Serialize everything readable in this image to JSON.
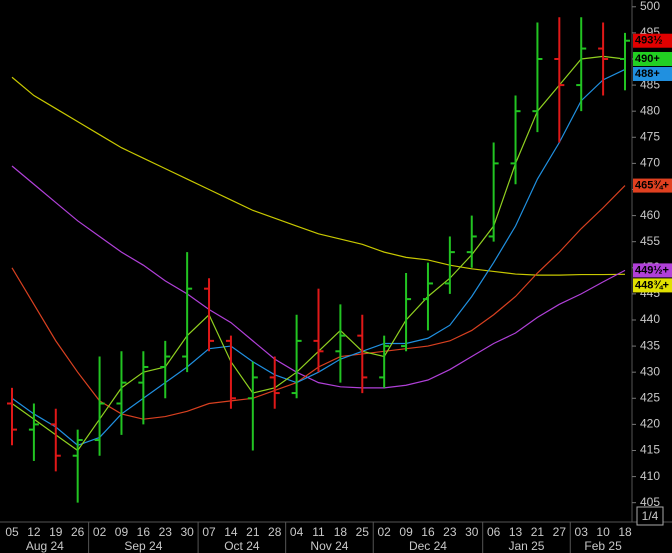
{
  "chart_data": {
    "type": "ohlc",
    "categories": [
      "05",
      "12",
      "19",
      "26",
      "02",
      "09",
      "16",
      "23",
      "30",
      "07",
      "14",
      "21",
      "28",
      "04",
      "11",
      "18",
      "25",
      "02",
      "09",
      "16",
      "23",
      "30",
      "06",
      "13",
      "21",
      "27",
      "03",
      "10",
      "18"
    ],
    "months": [
      "Aug 24",
      "Sep 24",
      "Oct 24",
      "Nov 24",
      "Dec 24",
      "Jan 25",
      "Feb 25"
    ],
    "ylim": [
      401.3,
      501.3
    ],
    "yticks": [
      405,
      410,
      415,
      420,
      425,
      430,
      435,
      440,
      445,
      450,
      455,
      460,
      465,
      470,
      475,
      480,
      485,
      490,
      495,
      500
    ],
    "grid": false,
    "up_color": "#22c422",
    "down_color": "#e01818",
    "ohlc": {
      "open": [
        424,
        419,
        420,
        414,
        417,
        424,
        428,
        431,
        433,
        446,
        436,
        425,
        429,
        426,
        436,
        434,
        437,
        429,
        435,
        444,
        447,
        453,
        456,
        470,
        480,
        490,
        485,
        492,
        490
      ],
      "high": [
        427,
        424,
        423,
        419,
        433,
        434,
        434,
        436,
        453,
        448,
        437,
        432,
        433,
        441,
        446,
        443,
        441,
        437,
        449,
        451,
        456,
        460,
        474,
        483,
        497,
        498,
        498,
        497,
        495
      ],
      "low": [
        416,
        413,
        411,
        405,
        414,
        418,
        420,
        425,
        430,
        434,
        423,
        415,
        423,
        425,
        430,
        428,
        426,
        427,
        434,
        438,
        445,
        450,
        455,
        466,
        476,
        474,
        480,
        483,
        484
      ],
      "close": [
        419,
        420,
        414,
        417,
        424,
        428,
        431,
        433,
        446,
        436,
        425,
        429,
        426,
        436,
        434,
        437,
        429,
        435,
        444,
        447,
        453,
        456,
        470,
        480,
        490,
        485,
        492,
        490,
        493.5
      ]
    },
    "series": [
      {
        "color": "#c8c800",
        "values": [
          486.5,
          483,
          480.5,
          478,
          475.5,
          473,
          471,
          469,
          467,
          465,
          463,
          461,
          459.5,
          458,
          456.5,
          455.5,
          454.5,
          453,
          452,
          451.5,
          450.5,
          449.8,
          449.3,
          448.8,
          448.6,
          448.6,
          448.7,
          448.7,
          448.75
        ]
      },
      {
        "color": "#b040d8",
        "values": [
          469.5,
          466,
          462.5,
          459,
          456,
          453,
          450.5,
          447.5,
          445,
          442,
          439.5,
          436,
          432.5,
          430,
          428,
          427.2,
          427,
          427,
          427.5,
          428.5,
          430.5,
          433,
          435.5,
          437.5,
          440.5,
          443,
          445,
          447.3,
          449.5
        ]
      },
      {
        "color": "#d84020",
        "values": [
          450,
          443,
          436,
          430,
          424.5,
          422,
          421,
          421.5,
          422.5,
          424,
          424.5,
          425,
          426.5,
          428,
          431,
          433,
          433.5,
          434,
          434.5,
          435,
          436,
          438,
          441,
          444.5,
          449,
          453,
          457.5,
          461.5,
          465.75
        ]
      },
      {
        "color": "#2090e0",
        "values": [
          425,
          422,
          419.5,
          416,
          417.5,
          422,
          425,
          428,
          431,
          434.5,
          435,
          432,
          429.5,
          428,
          430,
          432.5,
          434,
          435.5,
          435.5,
          436.5,
          439,
          444.5,
          451,
          458,
          467,
          474,
          482,
          486,
          488
        ]
      },
      {
        "color": "#90d020",
        "values": [
          424,
          421,
          418,
          415,
          421,
          427,
          430,
          431,
          437,
          441,
          432,
          426,
          427,
          430,
          434,
          438,
          434,
          433,
          440,
          444.5,
          448,
          452.5,
          458,
          470,
          480,
          485,
          490,
          490.5,
          490
        ]
      }
    ],
    "price_tags": [
      {
        "value": 493.5,
        "label": "493½",
        "color": "#e00000",
        "text_color": "#000000"
      },
      {
        "value": 490,
        "label": "490+",
        "color": "#22d022",
        "text_color": "#000000"
      },
      {
        "value": 488,
        "label": "488+",
        "color": "#2090e0",
        "text_color": "#000000"
      },
      {
        "value": 465.75,
        "label": "465¾+",
        "color": "#e04020",
        "text_color": "#000000"
      },
      {
        "value": 449.5,
        "label": "449½+",
        "color": "#b040d8",
        "text_color": "#000000"
      },
      {
        "value": 448.75,
        "label": "448¾+",
        "color": "#e0e000",
        "text_color": "#000000"
      }
    ],
    "corner_label": "1/4"
  }
}
